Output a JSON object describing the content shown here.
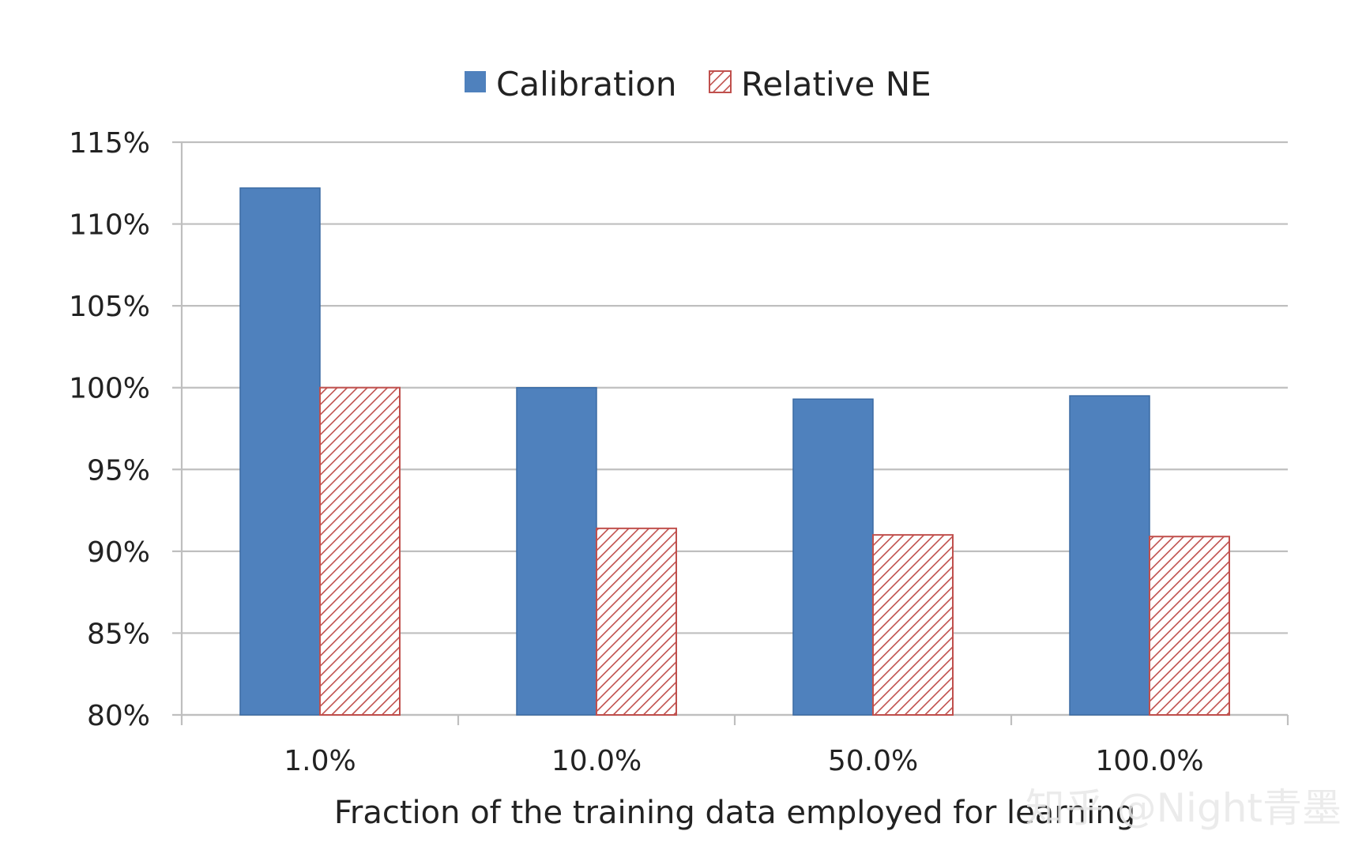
{
  "chart_data": {
    "type": "bar",
    "title": "",
    "xlabel": "Fraction of the training data employed for learning",
    "ylabel": "",
    "categories": [
      "1.0%",
      "10.0%",
      "50.0%",
      "100.0%"
    ],
    "series": [
      {
        "name": "Calibration",
        "values": [
          112.2,
          100.0,
          99.3,
          99.5
        ],
        "color": "#4f81bd",
        "fill": "solid"
      },
      {
        "name": "Relative NE",
        "values": [
          100.0,
          91.4,
          91.0,
          90.9
        ],
        "color": "#c0504d",
        "fill": "hatched"
      }
    ],
    "ylim": [
      80,
      115
    ],
    "yticks": [
      80,
      85,
      90,
      95,
      100,
      105,
      110,
      115
    ],
    "ytick_labels": [
      "80%",
      "85%",
      "90%",
      "95%",
      "100%",
      "105%",
      "110%",
      "115%"
    ],
    "grid": true,
    "legend_position": "top-center"
  },
  "watermark": "知乎 @Night青墨"
}
